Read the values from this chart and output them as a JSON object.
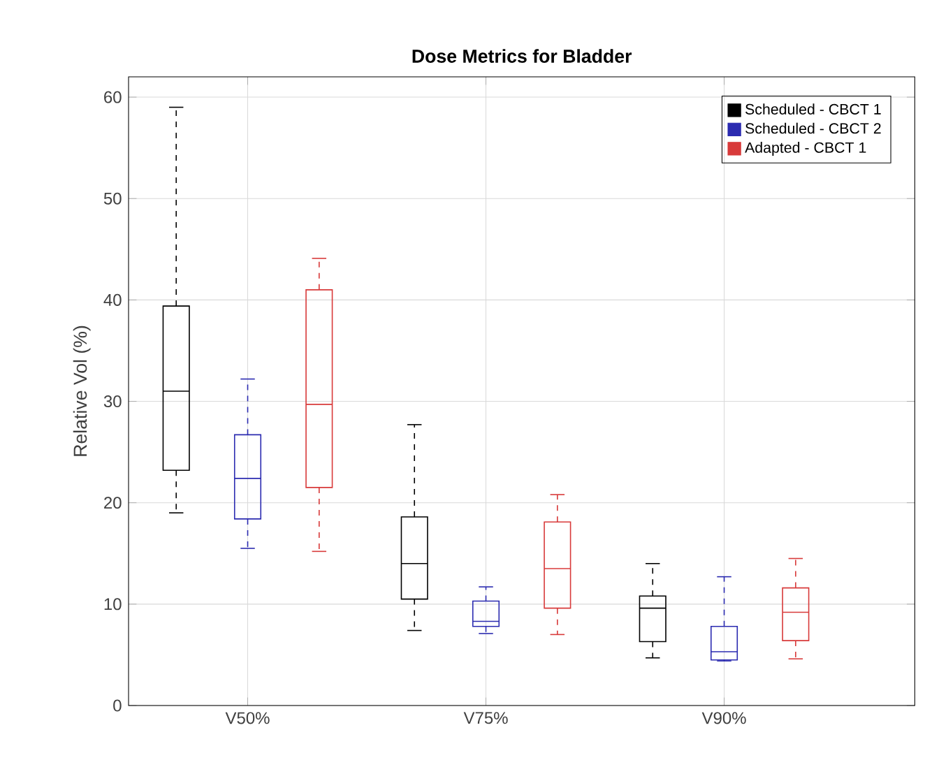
{
  "chart_data": {
    "type": "box",
    "title": "Dose Metrics for Bladder",
    "ylabel": "Relative Vol (%)",
    "categories": [
      "V50%",
      "V75%",
      "V90%"
    ],
    "ylim": [
      0,
      62
    ],
    "yticks": [
      0,
      10,
      20,
      30,
      40,
      50,
      60
    ],
    "grid": true,
    "legend": "top right",
    "series": [
      {
        "name": "Scheduled - CBCT 1",
        "color": "#000000",
        "boxes": [
          {
            "low": 19,
            "q1": 23.2,
            "median": 31,
            "q3": 39.4,
            "high": 59
          },
          {
            "low": 7.4,
            "q1": 10.5,
            "median": 14,
            "q3": 18.6,
            "high": 27.7
          },
          {
            "low": 4.7,
            "q1": 6.3,
            "median": 9.6,
            "q3": 10.8,
            "high": 14
          }
        ]
      },
      {
        "name": "Scheduled - CBCT 2",
        "color": "#2b2bb0",
        "boxes": [
          {
            "low": 15.5,
            "q1": 18.4,
            "median": 22.4,
            "q3": 26.7,
            "high": 32.2
          },
          {
            "low": 7.1,
            "q1": 7.8,
            "median": 8.3,
            "q3": 10.3,
            "high": 11.7
          },
          {
            "low": 4.4,
            "q1": 4.5,
            "median": 5.3,
            "q3": 7.8,
            "high": 12.7
          }
        ]
      },
      {
        "name": "Adapted - CBCT 1",
        "color": "#d83a3a",
        "boxes": [
          {
            "low": 15.2,
            "q1": 21.5,
            "median": 29.7,
            "q3": 41,
            "high": 44.1
          },
          {
            "low": 7,
            "q1": 9.6,
            "median": 13.5,
            "q3": 18.1,
            "high": 20.8
          },
          {
            "low": 4.6,
            "q1": 6.4,
            "median": 9.2,
            "q3": 11.6,
            "high": 14.5
          }
        ]
      }
    ]
  }
}
